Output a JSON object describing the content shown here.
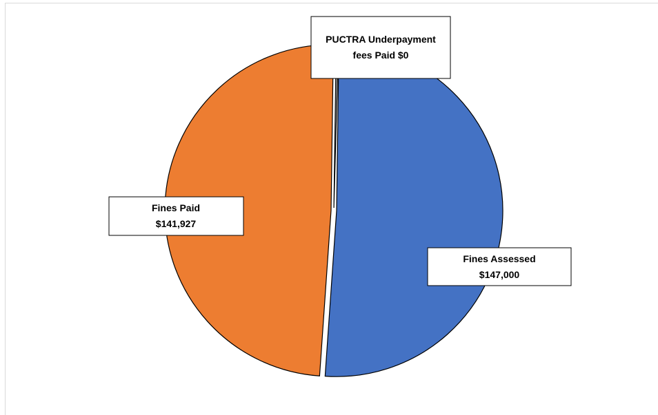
{
  "chart_data": {
    "type": "pie",
    "title": "",
    "slices": [
      {
        "name": "Fines Assessed",
        "value": 147000,
        "value_label": "$147,000",
        "color": "#4472C4"
      },
      {
        "name": "Fines Paid",
        "value": 141927,
        "value_label": "$141,927",
        "color": "#ED7D31"
      },
      {
        "name": "PUCTRA Underpayment fees Paid",
        "value": 0,
        "value_label": "$0",
        "color": "#A5A5A5"
      }
    ],
    "data_labels": [
      {
        "slice": "PUCTRA Underpayment fees Paid",
        "lines": [
          "PUCTRA Underpayment",
          "fees Paid $0"
        ]
      },
      {
        "slice": "Fines Paid",
        "lines": [
          "Fines Paid",
          "$141,927"
        ]
      },
      {
        "slice": "Fines Assessed",
        "lines": [
          "Fines Assessed",
          "$147,000"
        ]
      }
    ],
    "legend": "none"
  }
}
